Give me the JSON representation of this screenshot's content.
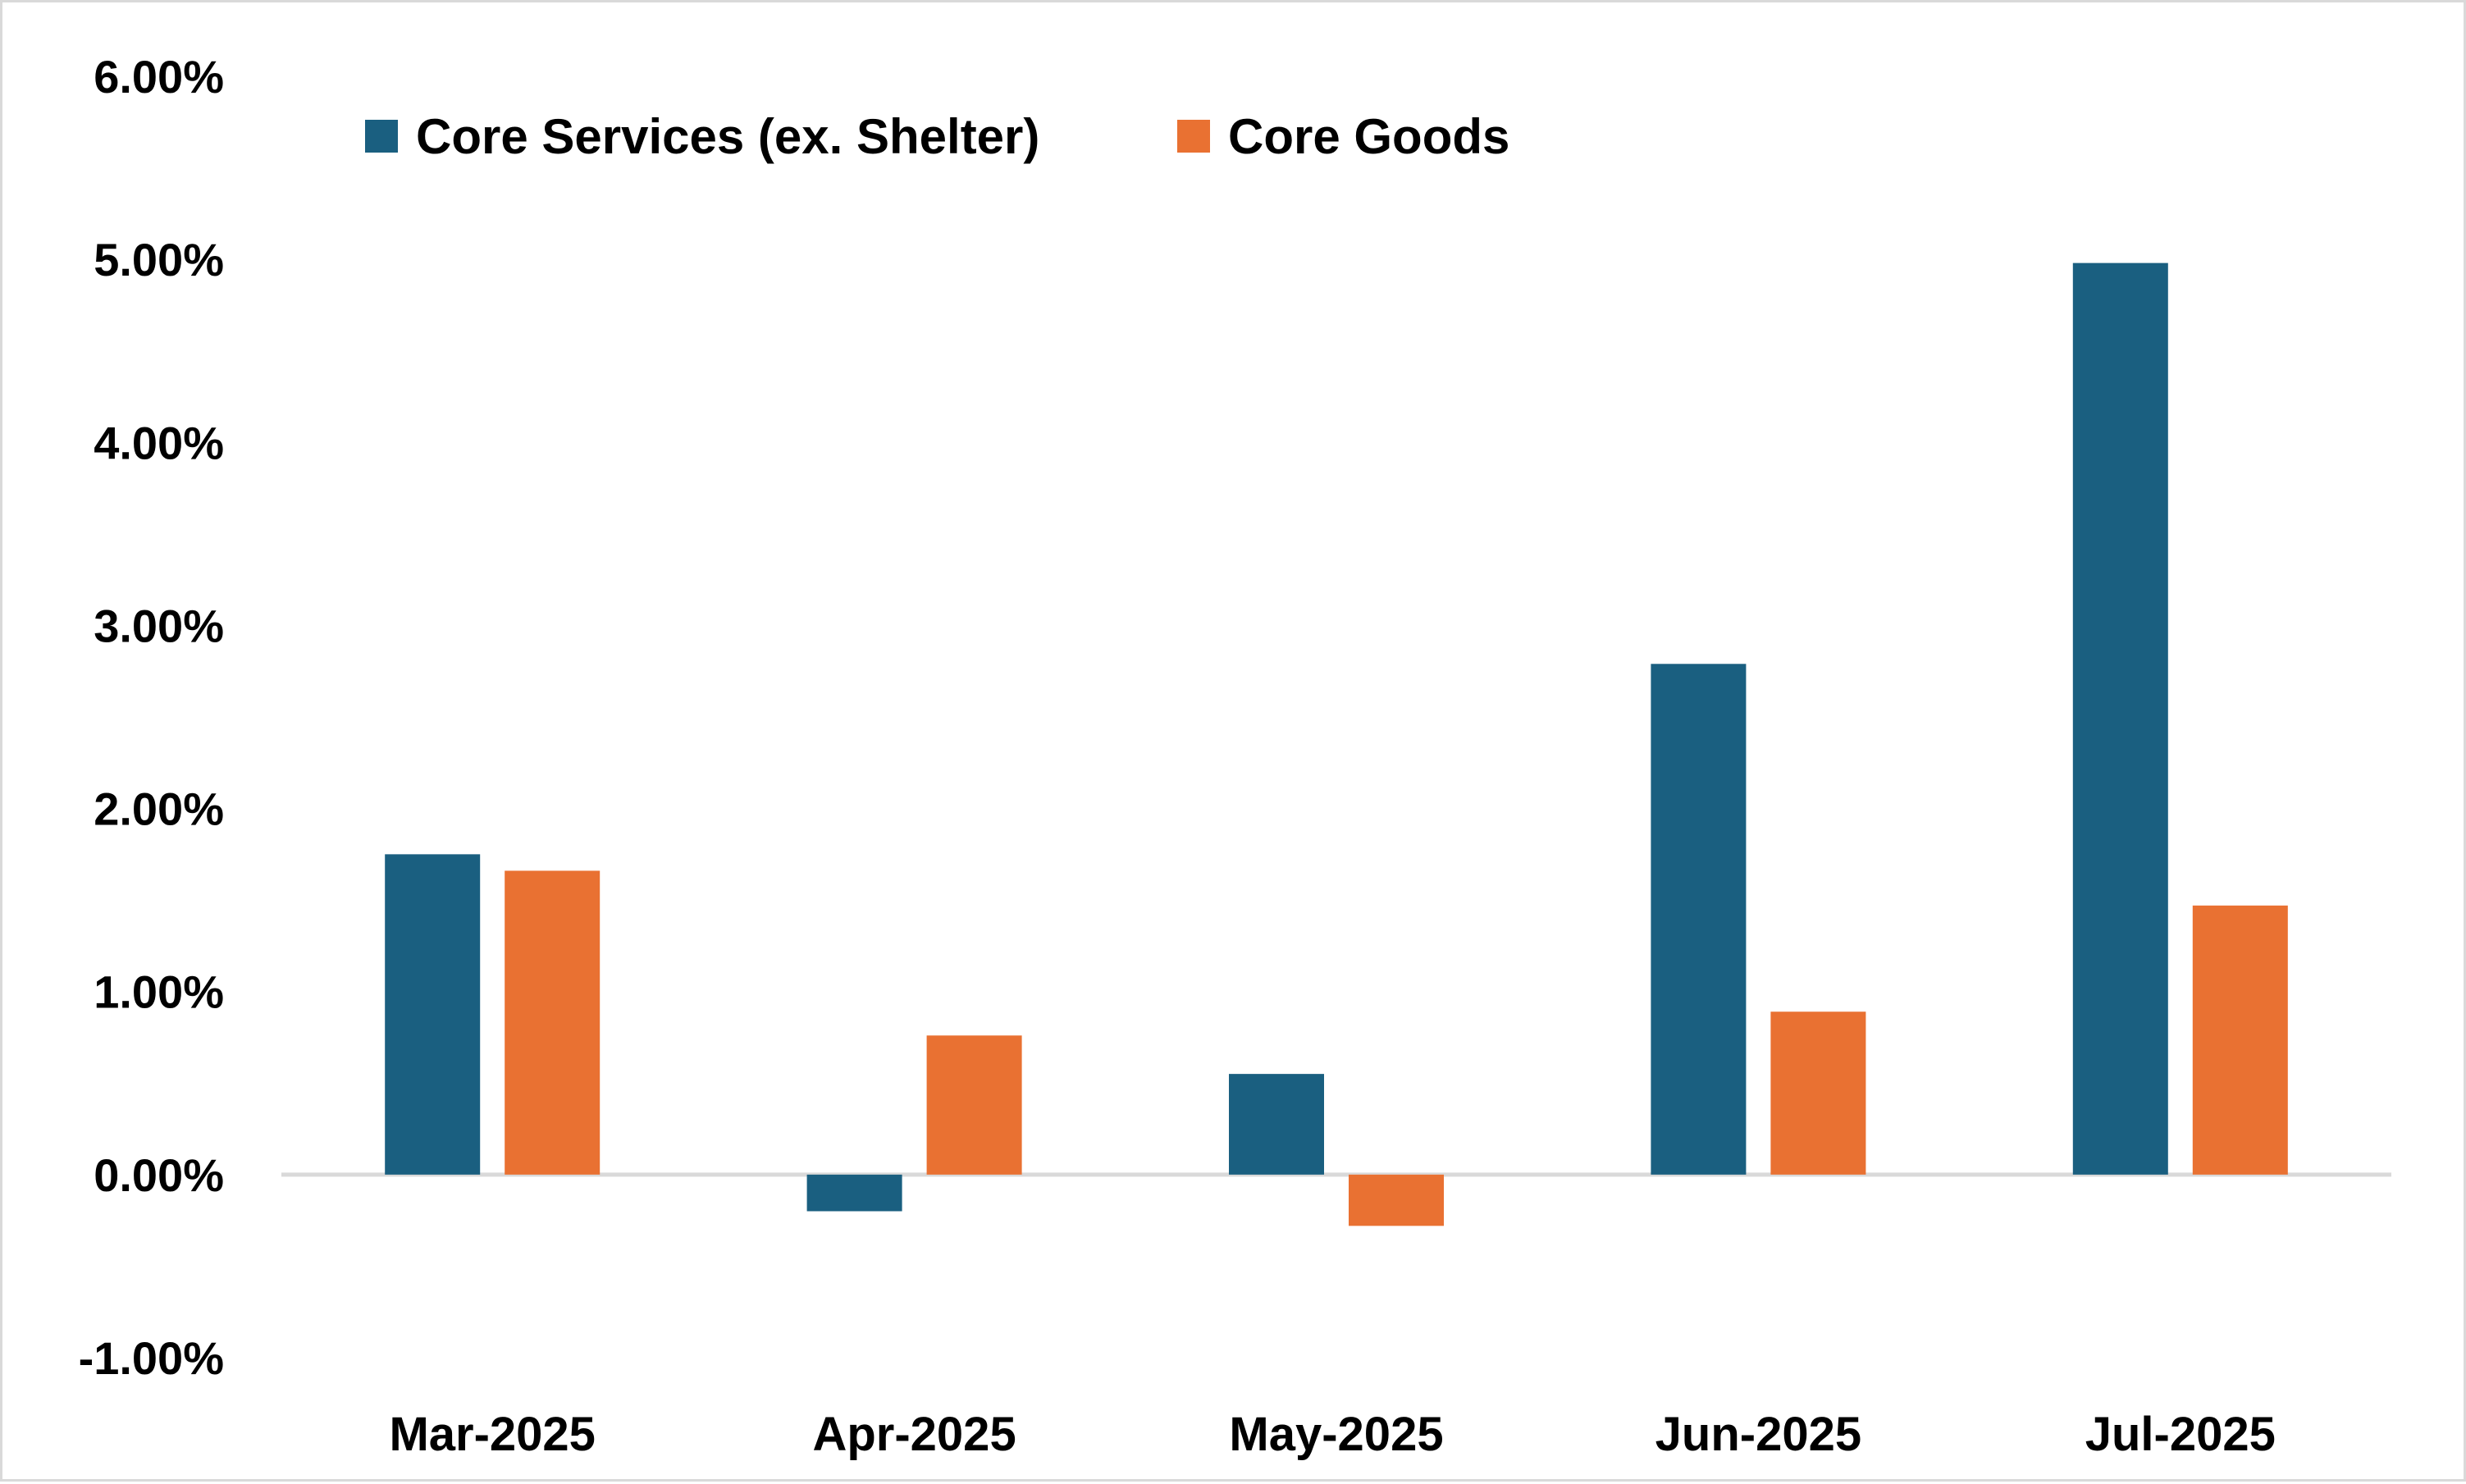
{
  "chart_data": {
    "type": "bar",
    "categories": [
      "Mar-2025",
      "Apr-2025",
      "May-2025",
      "Jun-2025",
      "Jul-2025"
    ],
    "series": [
      {
        "name": "Core Services (ex. Shelter)",
        "color": "#1a5f80",
        "values": [
          1.75,
          -0.2,
          0.55,
          2.79,
          4.98
        ]
      },
      {
        "name": "Core Goods",
        "color": "#e97132",
        "values": [
          1.66,
          0.76,
          -0.28,
          0.89,
          1.47
        ]
      }
    ],
    "ylim": [
      -1.0,
      6.0
    ],
    "yticks": [
      6,
      5,
      4,
      3,
      2,
      1,
      0,
      -1
    ],
    "ytick_labels": [
      "6.00%",
      "5.00%",
      "4.00%",
      "3.00%",
      "2.00%",
      "1.00%",
      "0.00%",
      "-1.00%"
    ],
    "zero_line_color": "#d9d9d9",
    "grid": false,
    "legend_position": "top-left"
  }
}
